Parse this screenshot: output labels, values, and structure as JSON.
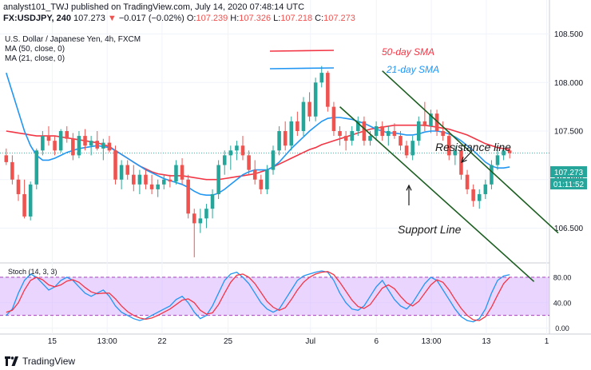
{
  "header": {
    "line1": "analyst101_TWJ published on TradingView.com, July 14, 2020 07:48:14 UTC",
    "ticker": "FX:USDJPY, 240",
    "last": "107.273",
    "change": "−0.017 (−0.02%)",
    "open_label": "O:",
    "open": "107.239",
    "high_label": "H:",
    "high": "107.326",
    "low_label": "L:",
    "low": "107.218",
    "close_label": "C:",
    "close": "107.273"
  },
  "footer": {
    "brand": "TradingView"
  },
  "colors": {
    "up": "#26a69a",
    "down": "#ef5350",
    "sma50": "#f23645",
    "sma21": "#2196f3",
    "stoch_k": "#2196f3",
    "stoch_d": "#f23645",
    "stoch_band": "#d9b3ff",
    "annotation": "#1a1a1a",
    "channel": "#1b5e20",
    "price_tag": "#26a69a",
    "last_line": "#26a69a"
  },
  "chart_data": [
    {
      "type": "candlestick",
      "title": "U.S. Dollar / Japanese Yen, 4h, FXCM",
      "legend": [
        {
          "label": "MA (50, close, 0)"
        },
        {
          "label": "MA (21, close, 0)"
        }
      ],
      "annotation_labels": {
        "sma50": "50-day SMA",
        "sma21": "21-day SMA"
      },
      "annotations": [
        "Resistance line",
        "Support Line"
      ],
      "x_ticks": [
        "15",
        "13:00",
        "22",
        "25",
        "Jul",
        "6",
        "13:00",
        "13",
        "1"
      ],
      "y_ticks": [
        106.5,
        107.0,
        107.5,
        108.0,
        108.5
      ],
      "ylim": [
        106.15,
        108.85
      ],
      "last_price_tag": "107.273",
      "countdown_tag": "01:11:52",
      "last_price": 107.273,
      "candles": [
        [
          107.25,
          107.32,
          107.15,
          107.18
        ],
        [
          107.18,
          107.25,
          106.95,
          107.0
        ],
        [
          107.0,
          107.05,
          106.78,
          106.85
        ],
        [
          106.85,
          107.0,
          106.6,
          106.62
        ],
        [
          106.62,
          106.98,
          106.58,
          106.95
        ],
        [
          106.95,
          107.32,
          106.9,
          107.3
        ],
        [
          107.3,
          107.5,
          107.25,
          107.45
        ],
        [
          107.45,
          107.55,
          107.35,
          107.4
        ],
        [
          107.4,
          107.45,
          107.25,
          107.3
        ],
        [
          107.3,
          107.52,
          107.28,
          107.5
        ],
        [
          107.5,
          107.55,
          107.38,
          107.42
        ],
        [
          107.42,
          107.48,
          107.2,
          107.25
        ],
        [
          107.25,
          107.5,
          107.22,
          107.45
        ],
        [
          107.45,
          107.52,
          107.3,
          107.35
        ],
        [
          107.35,
          107.45,
          107.25,
          107.4
        ],
        [
          107.4,
          107.5,
          107.3,
          107.32
        ],
        [
          107.32,
          107.42,
          107.2,
          107.38
        ],
        [
          107.38,
          107.45,
          107.28,
          107.3
        ],
        [
          107.3,
          107.35,
          106.95,
          107.0
        ],
        [
          107.0,
          107.2,
          106.9,
          107.15
        ],
        [
          107.15,
          107.2,
          107.0,
          107.05
        ],
        [
          107.05,
          107.15,
          106.88,
          106.95
        ],
        [
          106.95,
          107.1,
          106.85,
          107.05
        ],
        [
          107.05,
          107.1,
          106.9,
          106.95
        ],
        [
          106.95,
          107.05,
          106.85,
          106.9
        ],
        [
          106.9,
          107.0,
          106.82,
          106.95
        ],
        [
          106.95,
          107.05,
          106.9,
          107.0
        ],
        [
          107.0,
          107.05,
          106.92,
          106.98
        ],
        [
          106.98,
          107.2,
          106.95,
          107.15
        ],
        [
          107.15,
          107.22,
          106.95,
          107.0
        ],
        [
          107.0,
          107.05,
          106.6,
          106.65
        ],
        [
          106.65,
          106.7,
          106.2,
          106.55
        ],
        [
          106.55,
          106.7,
          106.45,
          106.6
        ],
        [
          106.6,
          106.75,
          106.5,
          106.7
        ],
        [
          106.7,
          106.9,
          106.6,
          106.85
        ],
        [
          106.85,
          107.2,
          106.8,
          107.15
        ],
        [
          107.15,
          107.3,
          107.05,
          107.25
        ],
        [
          107.25,
          107.35,
          107.1,
          107.3
        ],
        [
          107.3,
          107.4,
          107.2,
          107.35
        ],
        [
          107.35,
          107.45,
          107.2,
          107.25
        ],
        [
          107.25,
          107.3,
          107.05,
          107.1
        ],
        [
          107.1,
          107.2,
          106.95,
          107.0
        ],
        [
          107.0,
          107.05,
          106.85,
          106.9
        ],
        [
          106.9,
          107.15,
          106.85,
          107.1
        ],
        [
          107.1,
          107.35,
          107.05,
          107.3
        ],
        [
          107.3,
          107.55,
          107.25,
          107.5
        ],
        [
          107.5,
          107.6,
          107.3,
          107.35
        ],
        [
          107.35,
          107.65,
          107.3,
          107.6
        ],
        [
          107.6,
          107.7,
          107.45,
          107.5
        ],
        [
          107.5,
          107.85,
          107.45,
          107.8
        ],
        [
          107.8,
          107.9,
          107.6,
          107.65
        ],
        [
          107.65,
          108.05,
          107.6,
          108.0
        ],
        [
          108.0,
          108.17,
          107.95,
          108.1
        ],
        [
          108.1,
          108.12,
          107.7,
          107.75
        ],
        [
          107.75,
          107.8,
          107.45,
          107.5
        ],
        [
          107.5,
          107.55,
          107.35,
          107.45
        ],
        [
          107.45,
          107.5,
          107.3,
          107.4
        ],
        [
          107.4,
          107.55,
          107.35,
          107.5
        ],
        [
          107.5,
          107.65,
          107.45,
          107.6
        ],
        [
          107.6,
          107.65,
          107.35,
          107.4
        ],
        [
          107.4,
          107.5,
          107.35,
          107.45
        ],
        [
          107.45,
          107.6,
          107.4,
          107.55
        ],
        [
          107.55,
          107.6,
          107.4,
          107.45
        ],
        [
          107.45,
          107.55,
          107.35,
          107.5
        ],
        [
          107.5,
          107.58,
          107.42,
          107.45
        ],
        [
          107.45,
          107.5,
          107.3,
          107.35
        ],
        [
          107.35,
          107.4,
          107.22,
          107.25
        ],
        [
          107.25,
          107.45,
          107.2,
          107.4
        ],
        [
          107.4,
          107.65,
          107.35,
          107.6
        ],
        [
          107.6,
          107.8,
          107.5,
          107.55
        ],
        [
          107.55,
          107.72,
          107.48,
          107.68
        ],
        [
          107.68,
          107.72,
          107.45,
          107.5
        ],
        [
          107.5,
          107.6,
          107.4,
          107.45
        ],
        [
          107.45,
          107.5,
          107.2,
          107.25
        ],
        [
          107.25,
          107.35,
          107.15,
          107.3
        ],
        [
          107.3,
          107.35,
          107.0,
          107.05
        ],
        [
          107.05,
          107.1,
          106.85,
          106.9
        ],
        [
          106.9,
          106.95,
          106.72,
          106.78
        ],
        [
          106.78,
          106.9,
          106.7,
          106.85
        ],
        [
          106.85,
          107.0,
          106.8,
          106.95
        ],
        [
          106.95,
          107.2,
          106.9,
          107.15
        ],
        [
          107.15,
          107.3,
          107.1,
          107.25
        ],
        [
          107.25,
          107.33,
          107.2,
          107.3
        ],
        [
          107.3,
          107.326,
          107.218,
          107.273
        ]
      ],
      "sma50": [
        107.5,
        107.49,
        107.48,
        107.47,
        107.46,
        107.45,
        107.45,
        107.45,
        107.45,
        107.44,
        107.43,
        107.42,
        107.41,
        107.4,
        107.39,
        107.38,
        107.36,
        107.34,
        107.3,
        107.26,
        107.22,
        107.18,
        107.14,
        107.11,
        107.08,
        107.06,
        107.05,
        107.04,
        107.04,
        107.04,
        107.03,
        107.02,
        107.01,
        107.0,
        107.0,
        107.0,
        107.01,
        107.02,
        107.03,
        107.04,
        107.05,
        107.06,
        107.08,
        107.1,
        107.13,
        107.16,
        107.19,
        107.22,
        107.25,
        107.28,
        107.31,
        107.33,
        107.36,
        107.38,
        107.4,
        107.42,
        107.44,
        107.46,
        107.48,
        107.5,
        107.52,
        107.53,
        107.54,
        107.55,
        107.56,
        107.56,
        107.56,
        107.56,
        107.56,
        107.56,
        107.55,
        107.54,
        107.53,
        107.52,
        107.5,
        107.48,
        107.46,
        107.43,
        107.4,
        107.37,
        107.35,
        107.33,
        107.32,
        107.31
      ],
      "sma21": [
        108.1,
        107.9,
        107.7,
        107.5,
        107.35,
        107.25,
        107.2,
        107.2,
        107.22,
        107.25,
        107.28,
        107.3,
        107.32,
        107.33,
        107.34,
        107.35,
        107.34,
        107.33,
        107.3,
        107.26,
        107.22,
        107.18,
        107.14,
        107.1,
        107.07,
        107.04,
        107.01,
        106.99,
        106.97,
        106.95,
        106.92,
        106.88,
        106.85,
        106.84,
        106.84,
        106.86,
        106.9,
        106.95,
        107.0,
        107.05,
        107.08,
        107.1,
        107.1,
        107.1,
        107.13,
        107.18,
        107.25,
        107.32,
        107.38,
        107.44,
        107.5,
        107.55,
        107.6,
        107.63,
        107.64,
        107.64,
        107.63,
        107.62,
        107.6,
        107.58,
        107.55,
        107.52,
        107.5,
        107.48,
        107.48,
        107.47,
        107.46,
        107.46,
        107.47,
        107.49,
        107.5,
        107.5,
        107.49,
        107.47,
        107.44,
        107.4,
        107.35,
        107.3,
        107.24,
        107.18,
        107.14,
        107.12,
        107.12,
        107.13
      ]
    },
    {
      "type": "line",
      "title": "Stoch (14, 3, 3)",
      "y_ticks": [
        0.0,
        40.0,
        80.0
      ],
      "band": [
        20,
        80
      ],
      "ylim": [
        -8,
        100
      ],
      "k": [
        20,
        30,
        55,
        75,
        85,
        80,
        70,
        60,
        65,
        75,
        80,
        75,
        65,
        55,
        50,
        55,
        60,
        50,
        35,
        25,
        20,
        15,
        12,
        15,
        20,
        25,
        30,
        35,
        45,
        50,
        40,
        25,
        15,
        20,
        35,
        55,
        75,
        85,
        88,
        80,
        70,
        55,
        40,
        30,
        25,
        30,
        45,
        60,
        75,
        82,
        85,
        88,
        90,
        88,
        75,
        55,
        40,
        30,
        28,
        35,
        50,
        65,
        75,
        60,
        45,
        35,
        30,
        40,
        55,
        70,
        80,
        75,
        60,
        45,
        30,
        18,
        12,
        10,
        15,
        30,
        55,
        75,
        82,
        84
      ],
      "d": [
        25,
        28,
        40,
        60,
        75,
        80,
        76,
        68,
        65,
        68,
        74,
        76,
        72,
        64,
        57,
        54,
        55,
        55,
        46,
        35,
        26,
        20,
        16,
        14,
        16,
        20,
        25,
        30,
        37,
        44,
        46,
        40,
        28,
        22,
        24,
        37,
        55,
        72,
        83,
        85,
        80,
        70,
        56,
        42,
        33,
        28,
        32,
        45,
        60,
        72,
        80,
        85,
        88,
        89,
        84,
        72,
        58,
        44,
        34,
        31,
        37,
        50,
        63,
        68,
        62,
        50,
        40,
        35,
        42,
        55,
        68,
        76,
        72,
        60,
        45,
        31,
        20,
        13,
        12,
        18,
        33,
        52,
        70,
        80
      ]
    }
  ]
}
